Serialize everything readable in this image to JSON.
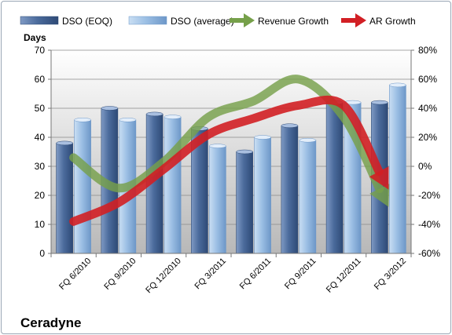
{
  "chart_data": {
    "type": "bar",
    "title": "Ceradyne",
    "ylabel": "Days",
    "ylim": [
      0,
      70
    ],
    "y2lim": [
      -0.6,
      0.8
    ],
    "y_ticks": [
      "0",
      "10",
      "20",
      "30",
      "40",
      "50",
      "60",
      "70"
    ],
    "y2_ticks": [
      "-60%",
      "-40%",
      "-20%",
      "0%",
      "20%",
      "40%",
      "60%",
      "80%"
    ],
    "categories": [
      "FQ 6/2010",
      "FQ 9/2010",
      "FQ 12/2010",
      "FQ 3/2011",
      "FQ 6/2011",
      "FQ 9/2011",
      "FQ 12/2011",
      "FQ 3/2012"
    ],
    "series": [
      {
        "name": "DSO (EOQ)",
        "kind": "bar",
        "values": [
          38,
          50,
          48,
          43,
          35,
          44,
          52,
          52
        ]
      },
      {
        "name": "DSO (average)",
        "kind": "bar",
        "values": [
          46,
          46,
          47,
          37,
          40,
          39,
          52,
          58
        ]
      },
      {
        "name": "Revenue Growth",
        "kind": "arrow",
        "axis": "secondary",
        "values": [
          0.06,
          -0.15,
          0.03,
          0.34,
          0.45,
          0.6,
          0.34,
          -0.28
        ]
      },
      {
        "name": "AR Growth",
        "kind": "arrow",
        "axis": "secondary",
        "values": [
          -0.38,
          -0.25,
          -0.02,
          0.22,
          0.33,
          0.42,
          0.42,
          -0.16
        ]
      }
    ],
    "colors": {
      "dso_eoq": "#4a6a9a",
      "dso_avg": "#9fc2e6",
      "revenue_growth": "#76a04a",
      "ar_growth": "#d21f24",
      "plot_bg": "#c0c0c0"
    },
    "grid": true,
    "legend": "top"
  }
}
